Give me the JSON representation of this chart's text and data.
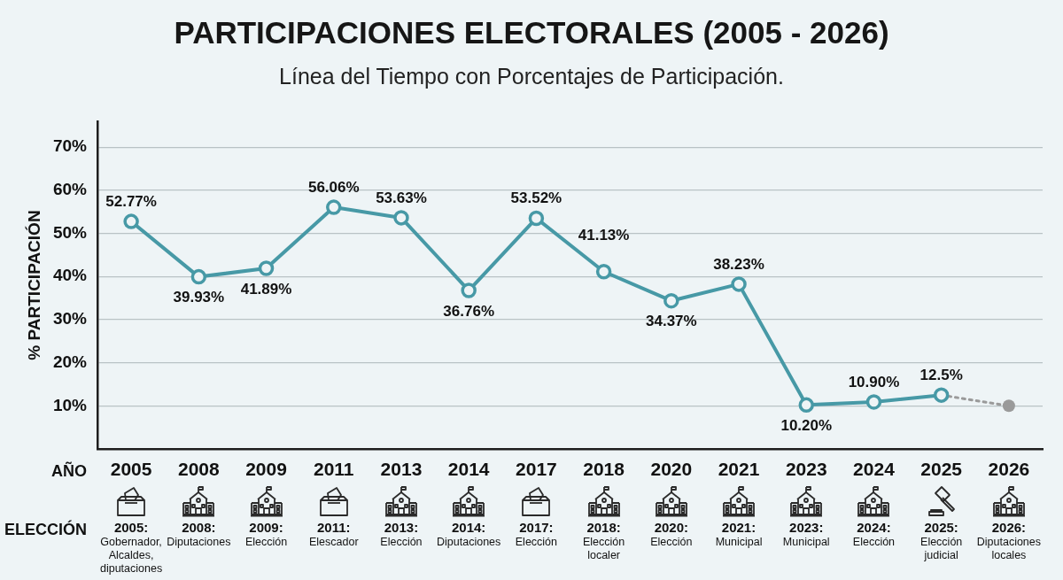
{
  "chart_data": {
    "type": "line",
    "title": "PARTICIPACIONES ELECTORALES (2005 - 2026)",
    "subtitle": "Línea del Tiempo con Porcentajes de Participación.",
    "xlabel": "AÑO",
    "ylabel": "% PARTICIPACIÓN",
    "categories": [
      "2005",
      "2008",
      "2009",
      "2011",
      "2013",
      "2014",
      "2017",
      "2018",
      "2020",
      "2021",
      "2023",
      "2024",
      "2025",
      "2026"
    ],
    "series": [
      {
        "color": "#4799a6",
        "line_style": "solid",
        "values": [
          52.77,
          39.93,
          41.89,
          56.06,
          53.63,
          36.76,
          53.52,
          41.13,
          34.37,
          38.23,
          10.2,
          10.9,
          12.5,
          null
        ],
        "value_labels": [
          "52.77%",
          "39.93%",
          "41.89%",
          "56.06%",
          "53.63%",
          "36.76%",
          "53.52%",
          "41.13%",
          "34.37%",
          "38.23%",
          "10.20%",
          "10.90%",
          "12.5%",
          null
        ]
      },
      {
        "color": "#9a9a9a",
        "line_style": "dotted",
        "values": [
          null,
          null,
          null,
          null,
          null,
          null,
          null,
          null,
          null,
          null,
          null,
          null,
          12.5,
          10
        ]
      }
    ],
    "ylim": [
      0,
      76
    ],
    "yticks": [
      {
        "value": 10,
        "label": "10%"
      },
      {
        "value": 20,
        "label": "20%"
      },
      {
        "value": 30,
        "label": "30%"
      },
      {
        "value": 40,
        "label": "40%"
      },
      {
        "value": 50,
        "label": "50%"
      },
      {
        "value": 60,
        "label": "60%"
      },
      {
        "value": 70,
        "label": "70%"
      }
    ],
    "grid": "y",
    "marker": "circle",
    "annotations": [
      "ELECCIÓN",
      "2005: Gobernador, Alcaldes, diputaciones",
      "2008: Diputaciones",
      "2009: Elección",
      "2011: Elescador",
      "2013: Elección",
      "2014: Diputaciones",
      "2017: Elección",
      "2018: Elección localer",
      "2020: Elección",
      "2021: Municipal",
      "2023: Municipal",
      "2024: Elección",
      "2025: Elección judicial",
      "2026: Diputaciones locales"
    ]
  }
}
